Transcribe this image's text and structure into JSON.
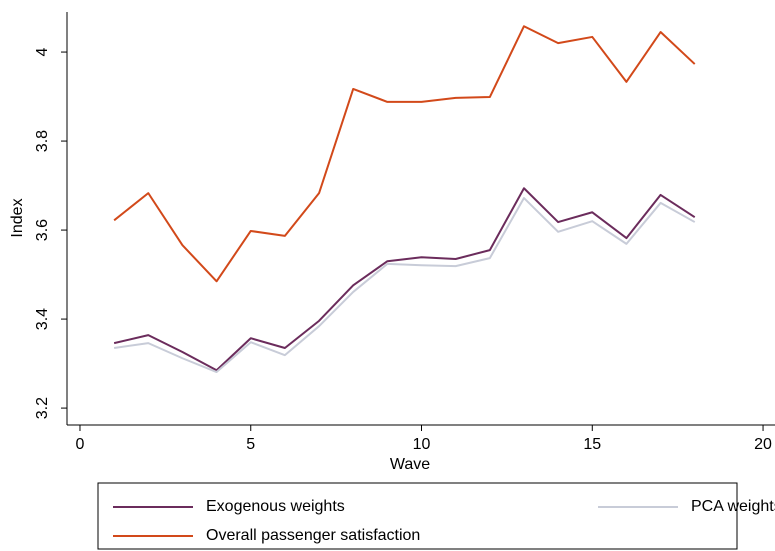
{
  "chart_data": {
    "type": "line",
    "x_label": "Wave",
    "y_label": "Index",
    "x": [
      1,
      2,
      3,
      4,
      5,
      6,
      7,
      8,
      9,
      10,
      11,
      12,
      13,
      14,
      15,
      16,
      17,
      18
    ],
    "series": [
      {
        "name": "Exogenous weights",
        "color": "#6b2c5c",
        "values": [
          3.346,
          3.364,
          3.326,
          3.285,
          3.357,
          3.335,
          3.396,
          3.476,
          3.53,
          3.539,
          3.535,
          3.555,
          3.694,
          3.618,
          3.64,
          3.582,
          3.679,
          3.629
        ]
      },
      {
        "name": "PCA weights",
        "color": "#c8ccd8",
        "values": [
          3.335,
          3.346,
          3.312,
          3.281,
          3.348,
          3.319,
          3.384,
          3.461,
          3.524,
          3.521,
          3.519,
          3.537,
          3.672,
          3.596,
          3.62,
          3.569,
          3.661,
          3.618
        ]
      },
      {
        "name": "Overall passenger satisfaction",
        "color": "#d2491a",
        "values": [
          3.622,
          3.683,
          3.566,
          3.485,
          3.598,
          3.587,
          3.683,
          3.917,
          3.888,
          3.888,
          3.897,
          3.899,
          4.058,
          4.02,
          4.034,
          3.933,
          4.045,
          3.973
        ]
      }
    ],
    "xlim": [
      -0.38,
      20.35
    ],
    "xticks": [
      0,
      5,
      10,
      15,
      20
    ],
    "ylim": [
      3.162,
      4.09
    ],
    "yticks": [
      3.2,
      3.4,
      3.6,
      3.8,
      4
    ],
    "grid": false,
    "legend": "bottom"
  }
}
